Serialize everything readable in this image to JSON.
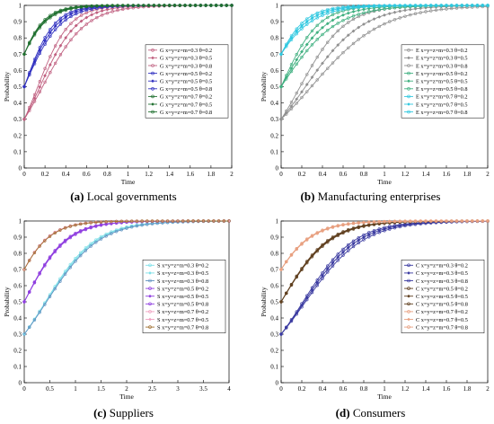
{
  "captions": [
    {
      "letter": "(a)",
      "text": " Local governments"
    },
    {
      "letter": "(b)",
      "text": " Manufacturing enterprises"
    },
    {
      "letter": "(c)",
      "text": " Suppliers"
    },
    {
      "letter": "(d)",
      "text": " Consumers"
    }
  ],
  "chart_data": [
    {
      "type": "line",
      "panel": "a",
      "xlabel": "Time",
      "ylabel": "Probability",
      "xlim": [
        0,
        2
      ],
      "ylim": [
        0,
        1
      ],
      "xticks": [
        "0",
        "0.2",
        "0.4",
        "0.6",
        "0.8",
        "1",
        "1.2",
        "1.4",
        "1.6",
        "1.8",
        "2"
      ],
      "yticks": [
        "0",
        "0.1",
        "0.2",
        "0.3",
        "0.4",
        "0.5",
        "0.6",
        "0.7",
        "0.8",
        "0.9",
        "1"
      ],
      "legend_position": "right-middle",
      "series": [
        {
          "name": "G x=y=z=m=0.3 θ=0.2",
          "x0": 0.3,
          "rate": 6.5,
          "color": "#c06080"
        },
        {
          "name": "G x=y=z=m=0.3 θ=0.5",
          "x0": 0.3,
          "rate": 5.6,
          "color": "#c06080"
        },
        {
          "name": "G x=y=z=m=0.3 θ=0.8",
          "x0": 0.3,
          "rate": 4.8,
          "color": "#c06080"
        },
        {
          "name": "G x=y=z=m=0.5 θ=0.2",
          "x0": 0.5,
          "rate": 7.0,
          "color": "#3030c0"
        },
        {
          "name": "G x=y=z=m=0.5 θ=0.5",
          "x0": 0.5,
          "rate": 6.4,
          "color": "#3030c0"
        },
        {
          "name": "G x=y=z=m=0.5 θ=0.8",
          "x0": 0.5,
          "rate": 5.8,
          "color": "#3030c0"
        },
        {
          "name": "G x=y=z=m=0.7 θ=0.2",
          "x0": 0.7,
          "rate": 7.5,
          "color": "#207030"
        },
        {
          "name": "G x=y=z=m=0.7 θ=0.5",
          "x0": 0.7,
          "rate": 7.0,
          "color": "#207030"
        },
        {
          "name": "G x=y=z=m=0.7 θ=0.8",
          "x0": 0.7,
          "rate": 6.6,
          "color": "#207030"
        }
      ]
    },
    {
      "type": "line",
      "panel": "b",
      "xlabel": "Time",
      "ylabel": "Probability",
      "xlim": [
        0,
        2
      ],
      "ylim": [
        0,
        1
      ],
      "xticks": [
        "0",
        "0.2",
        "0.4",
        "0.6",
        "0.8",
        "1",
        "1.2",
        "1.4",
        "1.6",
        "1.8",
        "2"
      ],
      "yticks": [
        "0",
        "0.1",
        "0.2",
        "0.3",
        "0.4",
        "0.5",
        "0.6",
        "0.7",
        "0.8",
        "0.9",
        "1"
      ],
      "legend_position": "right-middle",
      "series": [
        {
          "name": "E x=y=z=m=0.3 θ=0.2",
          "x0": 0.3,
          "rate": 4.6,
          "color": "#909090"
        },
        {
          "name": "E x=y=z=m=0.3 θ=0.5",
          "x0": 0.3,
          "rate": 3.6,
          "color": "#909090"
        },
        {
          "name": "E x=y=z=m=0.3 θ=0.8",
          "x0": 0.3,
          "rate": 2.9,
          "color": "#909090"
        },
        {
          "name": "E x=y=z=m=0.5 θ=0.2",
          "x0": 0.5,
          "rate": 5.6,
          "color": "#40b080"
        },
        {
          "name": "E x=y=z=m=0.5 θ=0.5",
          "x0": 0.5,
          "rate": 4.6,
          "color": "#40b080"
        },
        {
          "name": "E x=y=z=m=0.5 θ=0.8",
          "x0": 0.5,
          "rate": 3.8,
          "color": "#40b080"
        },
        {
          "name": "E x=y=z=m=0.7 θ=0.2",
          "x0": 0.7,
          "rate": 6.2,
          "color": "#30c8e0"
        },
        {
          "name": "E x=y=z=m=0.7 θ=0.5",
          "x0": 0.7,
          "rate": 5.4,
          "color": "#30c8e0"
        },
        {
          "name": "E x=y=z=m=0.7 θ=0.8",
          "x0": 0.7,
          "rate": 4.7,
          "color": "#30c8e0"
        }
      ]
    },
    {
      "type": "line",
      "panel": "c",
      "xlabel": "Time",
      "ylabel": "Probability",
      "xlim": [
        0,
        4
      ],
      "ylim": [
        0,
        1
      ],
      "xticks": [
        "0",
        "0.5",
        "1",
        "1.5",
        "2",
        "2.5",
        "3",
        "3.5",
        "4"
      ],
      "yticks": [
        "0",
        "0.1",
        "0.2",
        "0.3",
        "0.4",
        "0.5",
        "0.6",
        "0.7",
        "0.8",
        "0.9",
        "1"
      ],
      "legend_position": "right-middle",
      "series": [
        {
          "name": "S x=y=z=m=0.3 θ=0.2",
          "x0": 0.3,
          "rate": 2.05,
          "color": "#7fe0e8"
        },
        {
          "name": "S x=y=z=m=0.3 θ=0.5",
          "x0": 0.3,
          "rate": 2.0,
          "color": "#7fe0e8"
        },
        {
          "name": "S x=y=z=m=0.3 θ=0.8",
          "x0": 0.3,
          "rate": 1.95,
          "color": "#6090c0"
        },
        {
          "name": "S x=y=z=m=0.5 θ=0.2",
          "x0": 0.5,
          "rate": 2.5,
          "color": "#9040e0"
        },
        {
          "name": "S x=y=z=m=0.5 θ=0.5",
          "x0": 0.5,
          "rate": 2.45,
          "color": "#9040e0"
        },
        {
          "name": "S x=y=z=m=0.5 θ=0.8",
          "x0": 0.5,
          "rate": 2.4,
          "color": "#9040e0"
        },
        {
          "name": "S x=y=z=m=0.7 θ=0.2",
          "x0": 0.7,
          "rate": 2.9,
          "color": "#f0a0c0"
        },
        {
          "name": "S x=y=z=m=0.7 θ=0.5",
          "x0": 0.7,
          "rate": 2.85,
          "color": "#f0a0c0"
        },
        {
          "name": "S x=y=z=m=0.7 θ=0.8",
          "x0": 0.7,
          "rate": 2.8,
          "color": "#a07030"
        }
      ]
    },
    {
      "type": "line",
      "panel": "d",
      "xlabel": "Time",
      "ylabel": "Probability",
      "xlim": [
        0,
        2
      ],
      "ylim": [
        0,
        1
      ],
      "xticks": [
        "0",
        "0.2",
        "0.4",
        "0.6",
        "0.8",
        "1",
        "1.2",
        "1.4",
        "1.6",
        "1.8",
        "2"
      ],
      "yticks": [
        "0",
        "0.1",
        "0.2",
        "0.3",
        "0.4",
        "0.5",
        "0.6",
        "0.7",
        "0.8",
        "0.9",
        "1"
      ],
      "legend_position": "right-middle",
      "series": [
        {
          "name": "C x=y=z=m=0.3 θ=0.2",
          "x0": 0.3,
          "rate": 4.0,
          "color": "#3a3aa0"
        },
        {
          "name": "C x=y=z=m=0.3 θ=0.5",
          "x0": 0.3,
          "rate": 3.8,
          "color": "#3a3aa0"
        },
        {
          "name": "C x=y=z=m=0.3 θ=0.8",
          "x0": 0.3,
          "rate": 3.6,
          "color": "#3a3aa0"
        },
        {
          "name": "C x=y=z=m=0.5 θ=0.2",
          "x0": 0.5,
          "rate": 4.4,
          "color": "#604020"
        },
        {
          "name": "C x=y=z=m=0.5 θ=0.5",
          "x0": 0.5,
          "rate": 4.3,
          "color": "#604020"
        },
        {
          "name": "C x=y=z=m=0.5 θ=0.8",
          "x0": 0.5,
          "rate": 4.2,
          "color": "#604020"
        },
        {
          "name": "C x=y=z=m=0.7 θ=0.2",
          "x0": 0.7,
          "rate": 4.9,
          "color": "#e8a080"
        },
        {
          "name": "C x=y=z=m=0.7 θ=0.5",
          "x0": 0.7,
          "rate": 4.8,
          "color": "#e8a080"
        },
        {
          "name": "C x=y=z=m=0.7 θ=0.8",
          "x0": 0.7,
          "rate": 4.7,
          "color": "#e8a080"
        }
      ]
    }
  ]
}
